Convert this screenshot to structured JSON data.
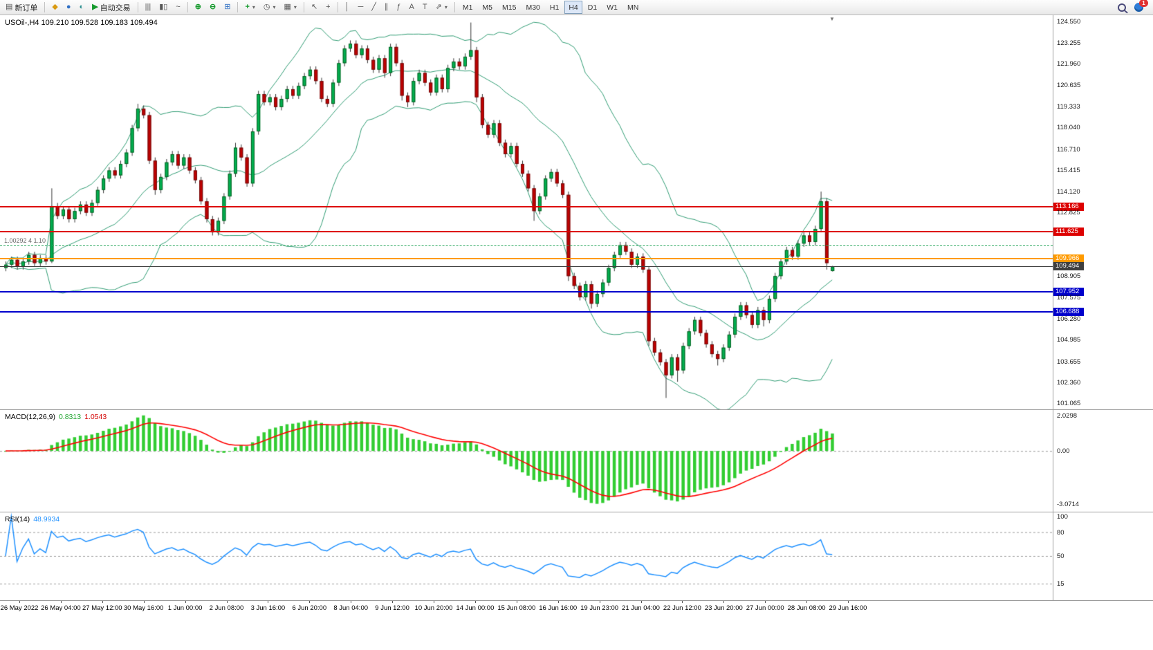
{
  "toolbar": {
    "notification_count": "1",
    "items": [
      {
        "name": "new-order-button",
        "icon": "▤",
        "icon_name": "new-order-icon",
        "label": "新订单"
      },
      {
        "sep": true
      },
      {
        "name": "charts-button",
        "icon": "◆",
        "icon_name": "charts-icon",
        "cls": "c-gold"
      },
      {
        "name": "market-watch-button",
        "icon": "●",
        "icon_name": "market-watch-icon",
        "cls": "c-blue"
      },
      {
        "name": "navigator-button",
        "icon": "◐",
        "icon_name": "navigator-icon",
        "cls": "c-teal"
      },
      {
        "name": "autotrading-button",
        "icon": "▶",
        "icon_name": "autotrading-icon",
        "label": "自动交易",
        "cls": "c-green"
      },
      {
        "sep": true
      },
      {
        "name": "bar-chart-button",
        "icon": "|||",
        "icon_name": "bar-chart-icon"
      },
      {
        "name": "candle-chart-button",
        "icon": "▮▯",
        "icon_name": "candlestick-chart-icon"
      },
      {
        "name": "line-chart-button",
        "icon": "~",
        "icon_name": "line-chart-icon"
      },
      {
        "sep": true
      },
      {
        "name": "zoom-in-button",
        "icon": "⊕",
        "icon_name": "zoom-in-icon",
        "cls": "c-green"
      },
      {
        "name": "zoom-out-button",
        "icon": "⊖",
        "icon_name": "zoom-out-icon",
        "cls": "c-green"
      },
      {
        "name": "tile-windows-button",
        "icon": "⊞",
        "icon_name": "tile-windows-icon",
        "cls": "c-blue"
      },
      {
        "sep": true
      },
      {
        "name": "indicators-button",
        "icon": "+",
        "icon_name": "add-indicator-icon",
        "cls": "c-green",
        "caret": true
      },
      {
        "name": "periods-button",
        "icon": "◷",
        "icon_name": "clock-icon",
        "caret": true
      },
      {
        "name": "templates-button",
        "icon": "▦",
        "icon_name": "template-icon",
        "caret": true
      },
      {
        "sep": true
      },
      {
        "name": "cursor-button",
        "icon": "↖",
        "icon_name": "cursor-icon"
      },
      {
        "name": "crosshair-button",
        "icon": "+",
        "icon_name": "crosshair-icon"
      },
      {
        "sep": true
      },
      {
        "name": "vline-button",
        "icon": "│",
        "icon_name": "vertical-line-icon"
      },
      {
        "name": "hline-button",
        "icon": "─",
        "icon_name": "horizontal-line-icon"
      },
      {
        "name": "trendline-button",
        "icon": "╱",
        "icon_name": "trendline-icon"
      },
      {
        "name": "channel-button",
        "icon": "∥",
        "icon_name": "channel-icon"
      },
      {
        "name": "fibo-button",
        "icon": "ƒ",
        "icon_name": "fibonacci-icon"
      },
      {
        "name": "text-button",
        "icon": "A",
        "icon_name": "text-icon"
      },
      {
        "name": "label-button",
        "icon": "T",
        "icon_name": "text-label-icon"
      },
      {
        "name": "arrows-button",
        "icon": "⇗",
        "icon_name": "arrows-icon",
        "caret": true
      },
      {
        "sep": true
      },
      {
        "name": "tf-m1-button",
        "label": "M1",
        "tf": true
      },
      {
        "name": "tf-m5-button",
        "label": "M5",
        "tf": true
      },
      {
        "name": "tf-m15-button",
        "label": "M15",
        "tf": true
      },
      {
        "name": "tf-m30-button",
        "label": "M30",
        "tf": true
      },
      {
        "name": "tf-h1-button",
        "label": "H1",
        "tf": true
      },
      {
        "name": "tf-h4-button",
        "label": "H4",
        "tf": true,
        "active": true
      },
      {
        "name": "tf-d1-button",
        "label": "D1",
        "tf": true
      },
      {
        "name": "tf-w1-button",
        "label": "W1",
        "tf": true
      },
      {
        "name": "tf-mn-button",
        "label": "MN",
        "tf": true
      }
    ]
  },
  "chart": {
    "symbol_line": "USOil-,H4 109.210 109.528 109.183 109.494",
    "object_label": "1.00292 4 1.10",
    "y_ticks": [
      124.55,
      123.255,
      121.96,
      120.635,
      119.333,
      118.04,
      116.71,
      115.415,
      114.12,
      112.825,
      108.905,
      107.575,
      106.28,
      104.985,
      103.655,
      102.36,
      101.065
    ],
    "levels": [
      {
        "price": 113.166,
        "color": "#dd0000",
        "width": 2,
        "style": "solid",
        "badge": true
      },
      {
        "price": 111.625,
        "color": "#dd0000",
        "width": 2,
        "style": "solid",
        "badge": true
      },
      {
        "price": 110.78,
        "color": "#26a65b",
        "width": 1,
        "style": "dashed",
        "badge": false
      },
      {
        "price": 109.966,
        "color": "#ff9a00",
        "width": 2,
        "style": "solid",
        "badge": true
      },
      {
        "price": 109.494,
        "color": "#3f3f3f",
        "width": 1,
        "style": "solid",
        "badge": true
      },
      {
        "price": 107.952,
        "color": "#0000cc",
        "width": 2,
        "style": "solid",
        "badge": true
      },
      {
        "price": 106.688,
        "color": "#0000cc",
        "width": 2,
        "style": "solid",
        "badge": true
      }
    ],
    "time_labels": [
      "26 May 2022",
      "26 May 04:00",
      "27 May 12:00",
      "30 May 16:00",
      "1 Jun 00:00",
      "2 Jun 08:00",
      "3 Jun 16:00",
      "6 Jun 20:00",
      "8 Jun 04:00",
      "9 Jun 12:00",
      "10 Jun 20:00",
      "14 Jun 00:00",
      "15 Jun 08:00",
      "16 Jun 16:00",
      "19 Jun 23:00",
      "21 Jun 04:00",
      "22 Jun 12:00",
      "23 Jun 20:00",
      "27 Jun 00:00",
      "28 Jun 08:00",
      "29 Jun 16:00"
    ]
  },
  "panels": {
    "macd": {
      "title": "MACD(12,26,9)",
      "main_value": "0.8313",
      "signal_value": "1.0543",
      "ticks": [
        {
          "value": 2.0298,
          "label": "2.0298"
        },
        {
          "value": 0,
          "label": "0.00"
        },
        {
          "value": -3.0714,
          "label": "-3.0714"
        }
      ]
    },
    "rsi": {
      "title": "RSI(14)",
      "value": "48.9934",
      "levels": [
        80,
        50,
        15
      ],
      "ticks": [
        {
          "value": 100,
          "label": "100"
        },
        {
          "value": 80,
          "label": "80"
        },
        {
          "value": 50,
          "label": "50"
        },
        {
          "value": 15,
          "label": "15"
        }
      ]
    }
  },
  "chart_data": {
    "type": "candlestick",
    "symbol": "USOil-",
    "timeframe": "H4",
    "ohlc_display": {
      "open": "109.210",
      "high": "109.528",
      "low": "109.183",
      "close": "109.494"
    },
    "price_axis_range": [
      100.7,
      124.95
    ],
    "macd_axis_range": [
      -3.45,
      2.35
    ],
    "rsi_axis_range": [
      -5,
      105
    ],
    "indicators": {
      "bollinger": {
        "period": 20,
        "deviation": 2
      },
      "macd": {
        "fast": 12,
        "slow": 26,
        "signal": 9,
        "last_main": 0.8313,
        "last_signal": 1.0543
      },
      "rsi": {
        "period": 14,
        "last": 48.9934
      }
    },
    "colors": {
      "up": "#00b050",
      "down": "#c00000",
      "wick": "#333333",
      "bands": "#2e9b72",
      "macd_hist": "#32cd32",
      "macd_signal": "#ff0000",
      "rsi_line": "#1e90ff"
    },
    "candles": [
      [
        109.4,
        109.8,
        109.2,
        109.6
      ],
      [
        109.6,
        110.1,
        109.4,
        109.9
      ],
      [
        109.9,
        110.1,
        109.3,
        109.5
      ],
      [
        109.5,
        110.0,
        109.3,
        109.8
      ],
      [
        109.8,
        110.4,
        109.6,
        110.2
      ],
      [
        110.2,
        110.4,
        109.5,
        109.7
      ],
      [
        109.7,
        110.2,
        109.5,
        110.0
      ],
      [
        110.0,
        110.2,
        109.6,
        109.8
      ],
      [
        109.8,
        114.3,
        109.7,
        113.2
      ],
      [
        113.2,
        113.4,
        112.4,
        112.6
      ],
      [
        112.6,
        113.2,
        112.4,
        113.0
      ],
      [
        113.0,
        113.2,
        112.2,
        112.4
      ],
      [
        112.4,
        113.1,
        112.2,
        112.9
      ],
      [
        112.9,
        113.5,
        112.7,
        113.3
      ],
      [
        113.3,
        113.5,
        112.6,
        112.8
      ],
      [
        112.8,
        113.6,
        112.6,
        113.4
      ],
      [
        113.4,
        114.4,
        113.2,
        114.2
      ],
      [
        114.2,
        115.1,
        114.0,
        114.9
      ],
      [
        114.9,
        115.6,
        114.7,
        115.4
      ],
      [
        115.4,
        115.6,
        114.9,
        115.1
      ],
      [
        115.1,
        116.0,
        114.9,
        115.8
      ],
      [
        115.8,
        116.7,
        115.6,
        116.5
      ],
      [
        116.5,
        118.2,
        116.3,
        118.0
      ],
      [
        118.0,
        119.5,
        117.8,
        119.2
      ],
      [
        119.2,
        119.4,
        118.6,
        118.8
      ],
      [
        118.8,
        119.0,
        115.8,
        116.0
      ],
      [
        116.0,
        116.2,
        113.9,
        114.2
      ],
      [
        114.2,
        115.2,
        114.0,
        115.0
      ],
      [
        115.0,
        116.1,
        114.8,
        115.9
      ],
      [
        115.9,
        116.6,
        115.7,
        116.4
      ],
      [
        116.4,
        116.6,
        115.5,
        115.7
      ],
      [
        115.7,
        116.4,
        115.5,
        116.2
      ],
      [
        116.2,
        116.4,
        115.2,
        115.4
      ],
      [
        115.4,
        115.6,
        114.6,
        114.8
      ],
      [
        114.8,
        115.0,
        113.3,
        113.5
      ],
      [
        113.5,
        113.7,
        112.2,
        112.4
      ],
      [
        112.4,
        112.6,
        111.4,
        111.6
      ],
      [
        111.6,
        112.5,
        111.4,
        112.3
      ],
      [
        112.3,
        114.0,
        112.1,
        113.8
      ],
      [
        113.8,
        115.4,
        113.6,
        115.2
      ],
      [
        115.2,
        117.1,
        115.0,
        116.8
      ],
      [
        116.8,
        117.0,
        116.0,
        116.2
      ],
      [
        116.2,
        116.4,
        114.4,
        114.6
      ],
      [
        114.6,
        118.0,
        114.4,
        117.8
      ],
      [
        117.8,
        120.3,
        117.6,
        120.1
      ],
      [
        120.1,
        120.3,
        119.4,
        119.6
      ],
      [
        119.6,
        120.1,
        119.4,
        119.9
      ],
      [
        119.9,
        120.1,
        119.1,
        119.3
      ],
      [
        119.3,
        120.0,
        119.1,
        119.8
      ],
      [
        119.8,
        120.6,
        119.6,
        120.4
      ],
      [
        120.4,
        120.6,
        119.8,
        120.0
      ],
      [
        120.0,
        120.8,
        119.8,
        120.6
      ],
      [
        120.6,
        121.4,
        120.4,
        121.2
      ],
      [
        121.2,
        121.8,
        121.0,
        121.6
      ],
      [
        121.6,
        121.8,
        120.7,
        120.9
      ],
      [
        120.9,
        121.1,
        119.6,
        119.8
      ],
      [
        119.8,
        120.0,
        119.3,
        119.5
      ],
      [
        119.5,
        121.0,
        119.3,
        120.8
      ],
      [
        120.8,
        122.2,
        120.6,
        122.0
      ],
      [
        122.0,
        123.1,
        121.8,
        122.9
      ],
      [
        122.9,
        123.4,
        122.7,
        123.2
      ],
      [
        123.2,
        123.4,
        122.3,
        122.5
      ],
      [
        122.5,
        123.1,
        122.3,
        122.9
      ],
      [
        122.9,
        123.1,
        122.0,
        122.2
      ],
      [
        122.2,
        122.4,
        121.4,
        121.6
      ],
      [
        121.6,
        122.5,
        121.4,
        122.3
      ],
      [
        122.3,
        122.5,
        121.1,
        121.4
      ],
      [
        121.4,
        123.2,
        121.2,
        123.0
      ],
      [
        123.0,
        123.2,
        121.8,
        122.0
      ],
      [
        122.0,
        122.2,
        119.7,
        120.0
      ],
      [
        120.0,
        120.2,
        119.3,
        119.6
      ],
      [
        119.6,
        121.1,
        119.4,
        120.9
      ],
      [
        120.9,
        121.6,
        120.7,
        121.4
      ],
      [
        121.4,
        121.6,
        120.6,
        120.8
      ],
      [
        120.8,
        121.0,
        120.0,
        120.2
      ],
      [
        120.2,
        121.3,
        120.0,
        121.1
      ],
      [
        121.1,
        121.3,
        120.2,
        120.4
      ],
      [
        120.4,
        121.9,
        120.2,
        121.7
      ],
      [
        121.7,
        122.3,
        121.5,
        122.1
      ],
      [
        122.1,
        122.3,
        121.6,
        121.8
      ],
      [
        121.8,
        122.6,
        121.6,
        122.4
      ],
      [
        122.4,
        124.5,
        122.2,
        122.8
      ],
      [
        122.8,
        123.0,
        119.6,
        119.9
      ],
      [
        119.9,
        120.1,
        118.0,
        118.2
      ],
      [
        118.2,
        118.4,
        117.4,
        117.6
      ],
      [
        117.6,
        118.5,
        117.4,
        118.3
      ],
      [
        118.3,
        118.5,
        116.9,
        117.1
      ],
      [
        117.1,
        117.3,
        116.2,
        116.4
      ],
      [
        116.4,
        117.1,
        116.2,
        116.9
      ],
      [
        116.9,
        117.1,
        115.6,
        115.8
      ],
      [
        115.8,
        116.0,
        115.0,
        115.2
      ],
      [
        115.2,
        115.4,
        114.1,
        114.3
      ],
      [
        114.3,
        114.5,
        112.3,
        112.9
      ],
      [
        112.9,
        114.0,
        112.7,
        113.8
      ],
      [
        113.8,
        115.1,
        113.6,
        114.9
      ],
      [
        114.9,
        115.5,
        114.7,
        115.3
      ],
      [
        115.3,
        115.5,
        114.4,
        114.6
      ],
      [
        114.6,
        114.8,
        113.7,
        113.9
      ],
      [
        113.9,
        114.1,
        108.6,
        108.9
      ],
      [
        108.9,
        109.1,
        108.1,
        108.3
      ],
      [
        108.3,
        108.5,
        107.4,
        107.6
      ],
      [
        107.6,
        108.6,
        107.4,
        108.4
      ],
      [
        108.4,
        108.6,
        106.9,
        107.2
      ],
      [
        107.2,
        108.0,
        107.0,
        107.8
      ],
      [
        107.8,
        108.7,
        107.6,
        108.5
      ],
      [
        108.5,
        109.6,
        108.3,
        109.4
      ],
      [
        109.4,
        110.4,
        109.2,
        110.2
      ],
      [
        110.2,
        111.0,
        110.0,
        110.8
      ],
      [
        110.8,
        111.0,
        110.2,
        110.4
      ],
      [
        110.4,
        110.6,
        109.4,
        109.6
      ],
      [
        109.6,
        110.3,
        109.4,
        110.1
      ],
      [
        110.1,
        110.3,
        109.1,
        109.3
      ],
      [
        109.3,
        109.5,
        104.6,
        104.9
      ],
      [
        104.9,
        105.1,
        104.0,
        104.2
      ],
      [
        104.2,
        104.4,
        103.4,
        103.6
      ],
      [
        103.6,
        103.8,
        101.4,
        102.8
      ],
      [
        102.8,
        104.1,
        102.6,
        103.9
      ],
      [
        103.9,
        104.1,
        102.4,
        103.1
      ],
      [
        103.1,
        104.8,
        102.9,
        104.6
      ],
      [
        104.6,
        105.7,
        104.4,
        105.5
      ],
      [
        105.5,
        106.4,
        105.3,
        106.2
      ],
      [
        106.2,
        106.4,
        105.2,
        105.4
      ],
      [
        105.4,
        105.6,
        104.5,
        104.7
      ],
      [
        104.7,
        104.9,
        103.9,
        104.1
      ],
      [
        104.1,
        104.3,
        103.4,
        103.8
      ],
      [
        103.8,
        104.7,
        103.6,
        104.5
      ],
      [
        104.5,
        105.5,
        104.3,
        105.3
      ],
      [
        105.3,
        106.6,
        105.1,
        106.4
      ],
      [
        106.4,
        107.3,
        106.2,
        107.1
      ],
      [
        107.1,
        107.3,
        106.3,
        106.5
      ],
      [
        106.5,
        106.7,
        105.7,
        105.9
      ],
      [
        105.9,
        107.0,
        105.7,
        106.8
      ],
      [
        106.8,
        107.0,
        105.8,
        106.2
      ],
      [
        106.2,
        107.7,
        106.0,
        107.5
      ],
      [
        107.5,
        109.1,
        107.3,
        108.9
      ],
      [
        108.9,
        110.0,
        108.7,
        109.8
      ],
      [
        109.8,
        110.7,
        109.6,
        110.5
      ],
      [
        110.5,
        110.7,
        109.9,
        110.1
      ],
      [
        110.1,
        111.1,
        109.9,
        110.9
      ],
      [
        110.9,
        111.6,
        110.7,
        111.4
      ],
      [
        111.4,
        111.6,
        110.8,
        111.0
      ],
      [
        111.0,
        112.0,
        110.8,
        111.8
      ],
      [
        111.8,
        114.1,
        111.6,
        113.5
      ],
      [
        113.5,
        113.7,
        109.3,
        109.7
      ],
      [
        109.21,
        109.53,
        109.18,
        109.49
      ]
    ]
  }
}
